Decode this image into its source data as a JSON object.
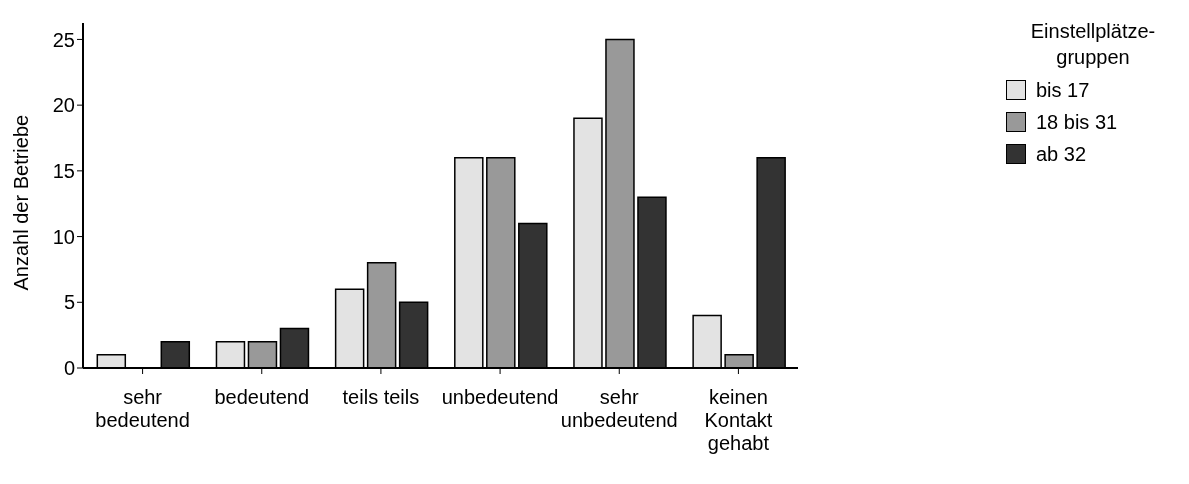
{
  "chart_data": {
    "type": "bar",
    "ylabel": "Anzahl der Betriebe",
    "legend_title": "Einstellplätze-\ngruppen",
    "categories": [
      "sehr\nbedeutend",
      "bedeutend",
      "teils teils",
      "unbedeutend",
      "sehr\nunbedeutend",
      "keinen\nKontakt\ngehabt"
    ],
    "series": [
      {
        "name": "bis 17",
        "color": "#e3e3e3",
        "values": [
          1,
          2,
          6,
          16,
          19,
          4
        ]
      },
      {
        "name": "18 bis 31",
        "color": "#999999",
        "values": [
          0,
          2,
          8,
          16,
          25,
          1
        ]
      },
      {
        "name": "ab 32",
        "color": "#333333",
        "values": [
          2,
          3,
          5,
          11,
          13,
          16
        ]
      }
    ],
    "ylim": [
      0,
      26.25
    ],
    "yticks": [
      0,
      5,
      10,
      15,
      20,
      25
    ],
    "grid": false,
    "legend": "right"
  }
}
